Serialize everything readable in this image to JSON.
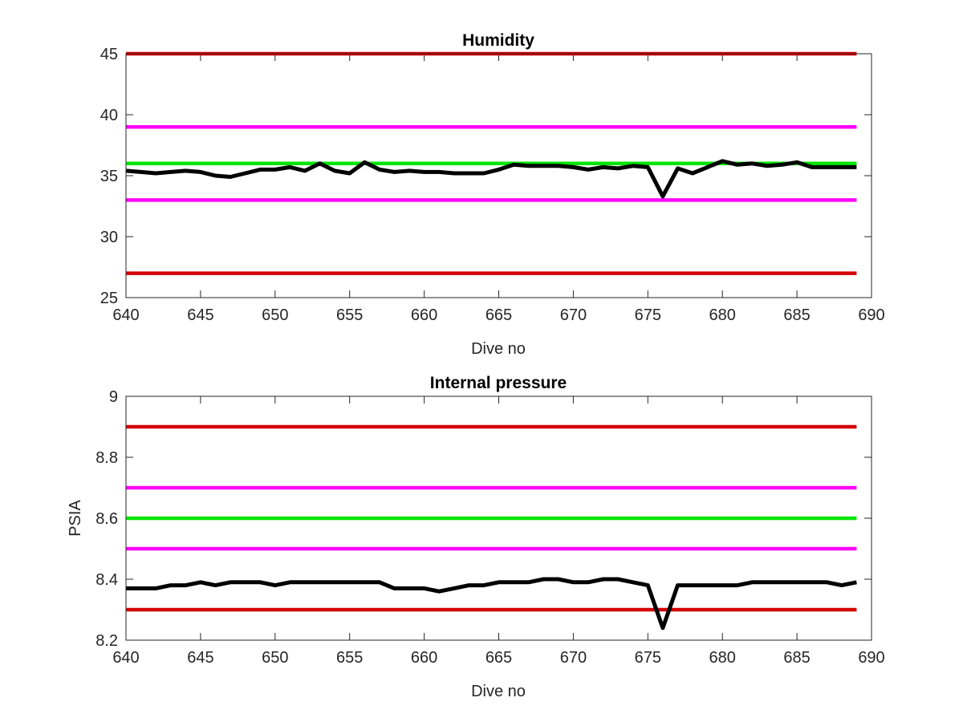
{
  "chart_data": [
    {
      "type": "line",
      "title": "Humidity",
      "xlabel": "Dive no",
      "ylabel": "",
      "xlim": [
        640,
        690
      ],
      "ylim": [
        25,
        45
      ],
      "xticks": [
        640,
        645,
        650,
        655,
        660,
        665,
        670,
        675,
        680,
        685,
        690
      ],
      "yticks": [
        25,
        30,
        35,
        40,
        45
      ],
      "grid": false,
      "series": [
        {
          "name": "",
          "color": "#d40000",
          "x": [
            640,
            689
          ],
          "values": [
            45,
            45
          ]
        },
        {
          "name": "",
          "color": "#ff00ff",
          "x": [
            640,
            689
          ],
          "values": [
            39,
            39
          ]
        },
        {
          "name": "",
          "color": "#00e600",
          "x": [
            640,
            689
          ],
          "values": [
            36,
            36
          ]
        },
        {
          "name": "",
          "color": "#ff00ff",
          "x": [
            640,
            689
          ],
          "values": [
            33,
            33
          ]
        },
        {
          "name": "",
          "color": "#d40000",
          "x": [
            640,
            689
          ],
          "values": [
            27,
            27
          ]
        },
        {
          "name": "",
          "color": "#000000",
          "x": [
            640,
            641,
            642,
            643,
            644,
            645,
            646,
            647,
            648,
            649,
            650,
            651,
            652,
            653,
            654,
            655,
            656,
            657,
            658,
            659,
            660,
            661,
            662,
            663,
            664,
            665,
            666,
            667,
            668,
            669,
            670,
            671,
            672,
            673,
            674,
            675,
            676,
            677,
            678,
            679,
            680,
            681,
            682,
            683,
            684,
            685,
            686,
            687,
            688,
            689
          ],
          "values": [
            35.4,
            35.3,
            35.2,
            35.3,
            35.4,
            35.3,
            35.0,
            34.9,
            35.2,
            35.5,
            35.5,
            35.7,
            35.4,
            36.0,
            35.4,
            35.2,
            36.1,
            35.5,
            35.3,
            35.4,
            35.3,
            35.3,
            35.2,
            35.2,
            35.2,
            35.5,
            35.9,
            35.8,
            35.8,
            35.8,
            35.7,
            35.5,
            35.7,
            35.6,
            35.8,
            35.7,
            33.3,
            35.6,
            35.2,
            35.7,
            36.2,
            35.9,
            36.0,
            35.8,
            35.9,
            36.1,
            35.7,
            35.7,
            35.7,
            35.7
          ]
        }
      ]
    },
    {
      "type": "line",
      "title": "Internal pressure",
      "xlabel": "Dive no",
      "ylabel": "PSIA",
      "xlim": [
        640,
        690
      ],
      "ylim": [
        8.2,
        9.0
      ],
      "xticks": [
        640,
        645,
        650,
        655,
        660,
        665,
        670,
        675,
        680,
        685,
        690
      ],
      "yticks": [
        8.2,
        8.4,
        8.6,
        8.8,
        9.0
      ],
      "ytick_labels": [
        "8.2",
        "8.4",
        "8.6",
        "8.8",
        "9"
      ],
      "grid": false,
      "series": [
        {
          "name": "",
          "color": "#d40000",
          "x": [
            640,
            689
          ],
          "values": [
            8.9,
            8.9
          ]
        },
        {
          "name": "",
          "color": "#ff00ff",
          "x": [
            640,
            689
          ],
          "values": [
            8.7,
            8.7
          ]
        },
        {
          "name": "",
          "color": "#00e600",
          "x": [
            640,
            689
          ],
          "values": [
            8.6,
            8.6
          ]
        },
        {
          "name": "",
          "color": "#ff00ff",
          "x": [
            640,
            689
          ],
          "values": [
            8.5,
            8.5
          ]
        },
        {
          "name": "",
          "color": "#d40000",
          "x": [
            640,
            689
          ],
          "values": [
            8.3,
            8.3
          ]
        },
        {
          "name": "",
          "color": "#000000",
          "x": [
            640,
            641,
            642,
            643,
            644,
            645,
            646,
            647,
            648,
            649,
            650,
            651,
            652,
            653,
            654,
            655,
            656,
            657,
            658,
            659,
            660,
            661,
            662,
            663,
            664,
            665,
            666,
            667,
            668,
            669,
            670,
            671,
            672,
            673,
            674,
            675,
            676,
            677,
            678,
            679,
            680,
            681,
            682,
            683,
            684,
            685,
            686,
            687,
            688,
            689
          ],
          "values": [
            8.37,
            8.37,
            8.37,
            8.38,
            8.38,
            8.39,
            8.38,
            8.39,
            8.39,
            8.39,
            8.38,
            8.39,
            8.39,
            8.39,
            8.39,
            8.39,
            8.39,
            8.39,
            8.37,
            8.37,
            8.37,
            8.36,
            8.37,
            8.38,
            8.38,
            8.39,
            8.39,
            8.39,
            8.4,
            8.4,
            8.39,
            8.39,
            8.4,
            8.4,
            8.39,
            8.38,
            8.24,
            8.38,
            8.38,
            8.38,
            8.38,
            8.38,
            8.39,
            8.39,
            8.39,
            8.39,
            8.39,
            8.39,
            8.38,
            8.39
          ]
        }
      ]
    }
  ]
}
